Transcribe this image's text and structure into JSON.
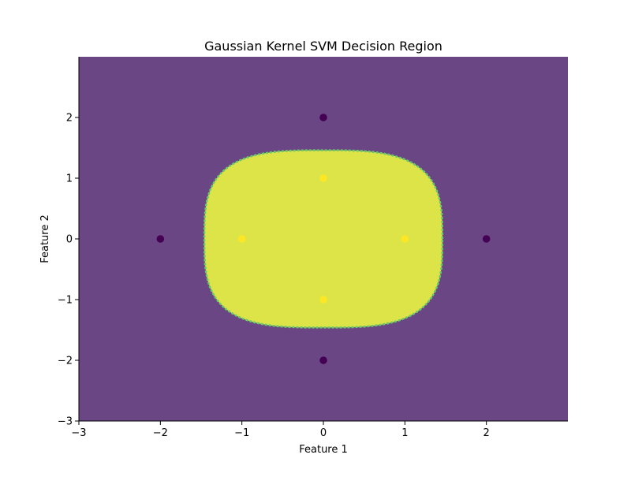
{
  "chart_data": {
    "type": "scatter",
    "title": "Gaussian Kernel SVM Decision Region",
    "xlabel": "Feature 1",
    "ylabel": "Feature 2",
    "xlim": [
      -3,
      3
    ],
    "ylim": [
      -3,
      3
    ],
    "xticks": [
      -3,
      -2,
      -1,
      0,
      1,
      2
    ],
    "yticks": [
      -3,
      -2,
      -1,
      0,
      1,
      2
    ],
    "grid": false,
    "decision_region": {
      "background_class_color": "#6b4685",
      "inner_class_color": "#dce447",
      "boundary_color": "#66cc6a",
      "boundary_center": [
        0,
        0
      ],
      "boundary_half_width": 1.46,
      "boundary_half_height": 1.46,
      "boundary_squareness_exponent": 3.2
    },
    "series": [
      {
        "class": 0,
        "color": "#440154",
        "points": [
          [
            0,
            2
          ],
          [
            -2,
            0
          ],
          [
            2,
            0
          ],
          [
            0,
            -2
          ]
        ]
      },
      {
        "class": 1,
        "color": "#fde725",
        "points": [
          [
            0,
            1
          ],
          [
            -1,
            0
          ],
          [
            1,
            0
          ],
          [
            0,
            -1
          ]
        ]
      }
    ]
  }
}
